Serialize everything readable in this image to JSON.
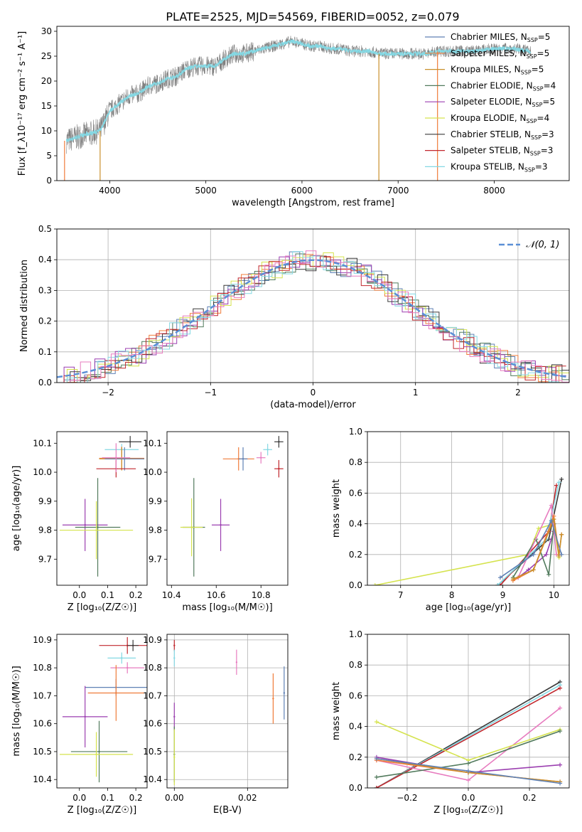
{
  "figure": {
    "title": "PLATE=2525, MJD=54569, FIBERID=0052, z=0.079"
  },
  "colors": {
    "Chabrier MILES": "#5f81b5",
    "Salpeter MILES": "#f07c3a",
    "Kroupa MILES": "#c9902c",
    "Chabrier ELODIE": "#517a5c",
    "Salpeter ELODIE": "#9b3fb0",
    "Kroupa ELODIE": "#d5e34e",
    "Chabrier STELIB": "#3a3a3a",
    "Salpeter STELIB": "#c1272d",
    "Kroupa STELIB": "#84d8e3",
    "Pink": "#e77bbf",
    "Gaussian": "#5b8fd6",
    "Data": "#808080"
  },
  "chart_data": [
    {
      "id": "spectrum",
      "type": "line",
      "title": "PLATE=2525, MJD=54569, FIBERID=0052, z=0.079",
      "xlabel": "wavelength [Angstrom, rest frame]",
      "ylabel": "Flux [f_λ10⁻¹⁷ erg cm⁻² s⁻¹ A⁻¹]",
      "xlim": [
        3450,
        8780
      ],
      "ylim": [
        0,
        31
      ],
      "xticks": [
        4000,
        5000,
        6000,
        7000,
        8000
      ],
      "yticks": [
        0,
        5,
        10,
        15,
        20,
        25,
        30
      ],
      "grid": false,
      "legend_position": "right",
      "legend": [
        {
          "label": "Chabrier MILES, N",
          "sub": "SSP",
          "suffix": "=5",
          "color_key": "Chabrier MILES"
        },
        {
          "label": "Salpeter MILES, N",
          "sub": "SSP",
          "suffix": "=5",
          "color_key": "Salpeter MILES"
        },
        {
          "label": "Kroupa MILES, N",
          "sub": "SSP",
          "suffix": "=5",
          "color_key": "Kroupa MILES"
        },
        {
          "label": "Chabrier ELODIE, N",
          "sub": "SSP",
          "suffix": "=4",
          "color_key": "Chabrier ELODIE"
        },
        {
          "label": "Salpeter ELODIE, N",
          "sub": "SSP",
          "suffix": "=5",
          "color_key": "Salpeter ELODIE"
        },
        {
          "label": "Kroupa ELODIE, N",
          "sub": "SSP",
          "suffix": "=4",
          "color_key": "Kroupa ELODIE"
        },
        {
          "label": "Chabrier STELIB, N",
          "sub": "SSP",
          "suffix": "=3",
          "color_key": "Chabrier STELIB"
        },
        {
          "label": "Salpeter STELIB, N",
          "sub": "SSP",
          "suffix": "=3",
          "color_key": "Salpeter STELIB"
        },
        {
          "label": "Kroupa STELIB, N",
          "sub": "SSP",
          "suffix": "=3",
          "color_key": "Kroupa STELIB"
        }
      ],
      "continuum": {
        "x": [
          3550,
          3700,
          3800,
          3900,
          4000,
          4100,
          4200,
          4300,
          4400,
          4500,
          4600,
          4700,
          4800,
          4900,
          5000,
          5100,
          5200,
          5300,
          5400,
          5500,
          5600,
          5700,
          5800,
          5900,
          6000,
          6100,
          6200,
          6300,
          6400,
          6500,
          6600,
          6700,
          6800,
          6900,
          7000,
          7100,
          7200,
          7300,
          7420,
          7600,
          7800,
          8000,
          8200,
          8380
        ],
        "y": [
          8,
          9,
          9.5,
          10,
          14,
          15.5,
          17,
          17.5,
          19,
          19.5,
          20.5,
          21,
          22.5,
          23,
          23,
          23,
          24.5,
          25.5,
          25.5,
          26,
          26.5,
          27,
          27.5,
          28,
          27.5,
          27,
          27,
          26.5,
          26.5,
          26,
          26,
          26,
          25.5,
          25.5,
          25.5,
          25.5,
          25.5,
          25.5,
          26,
          26,
          26,
          26.5,
          26.5,
          26
        ]
      },
      "drops": [
        {
          "x": 3530,
          "to": 0,
          "color_key": "Salpeter MILES"
        },
        {
          "x": 3900,
          "to": 0,
          "color_key": "Kroupa MILES"
        },
        {
          "x": 6800,
          "to": 0,
          "color_key": "Kroupa MILES"
        },
        {
          "x": 7410,
          "to": 0,
          "color_key": "Salpeter MILES"
        }
      ]
    },
    {
      "id": "residuals",
      "type": "histogram",
      "xlabel": "(data-model)/error",
      "ylabel": "Normed distribution",
      "xlim": [
        -2.5,
        2.5
      ],
      "ylim": [
        0,
        0.5
      ],
      "xticks": [
        -2,
        -1,
        0,
        1,
        2
      ],
      "xtick_labels": [
        "−2",
        "−1",
        "0",
        "1",
        "2"
      ],
      "yticks": [
        0,
        0.1,
        0.2,
        0.3,
        0.4,
        0.5
      ],
      "grid": true,
      "legend": [
        {
          "label": "𝒩(0, 1)",
          "color_key": "Gaussian",
          "style": "dashed"
        }
      ],
      "legend_position": "top-right",
      "bin_width": 0.1,
      "gaussian": {
        "mean": 0,
        "sigma": 1
      }
    },
    {
      "id": "age-vs-Z",
      "type": "scatter",
      "xlabel": "Z [log₁₀(Z/Z☉)]",
      "ylabel": "age  [log₁₀(age/yr)]",
      "xlim": [
        -0.08,
        0.24
      ],
      "ylim": [
        9.61,
        10.14
      ],
      "xticks": [
        0.0,
        0.1,
        0.2
      ],
      "yticks": [
        9.7,
        9.8,
        9.9,
        10.0,
        10.1
      ],
      "grid": false,
      "points": [
        {
          "key": "Chabrier STELIB",
          "x": 0.18,
          "y": 10.105,
          "xerr": 0.04,
          "yerr": 0.02
        },
        {
          "key": "Kroupa STELIB",
          "x": 0.15,
          "y": 10.078,
          "xerr": 0.06,
          "yerr": 0.02
        },
        {
          "key": "Salpeter MILES",
          "x": 0.15,
          "y": 10.048,
          "xerr": 0.08,
          "yerr": 0.04
        },
        {
          "key": "Kroupa MILES",
          "x": 0.15,
          "y": 10.046,
          "xerr": 0.08,
          "yerr": 0.04
        },
        {
          "key": "Chabrier MILES",
          "x": 0.16,
          "y": 10.046,
          "xerr": 0.07,
          "yerr": 0.04
        },
        {
          "key": "Salpeter STELIB",
          "x": 0.13,
          "y": 10.012,
          "xerr": 0.07,
          "yerr": 0.03
        },
        {
          "key": "Pink",
          "x": 0.13,
          "y": 10.05,
          "xerr": 0.05,
          "yerr": 0.05
        },
        {
          "key": "Salpeter ELODIE",
          "x": 0.02,
          "y": 9.818,
          "xerr": 0.08,
          "yerr": 0.09
        },
        {
          "key": "Chabrier ELODIE",
          "x": 0.065,
          "y": 9.81,
          "xerr": 0.08,
          "yerr": 0.17
        },
        {
          "key": "Kroupa ELODIE",
          "x": 0.06,
          "y": 9.8,
          "xerr": 0.13,
          "yerr": 0.1
        }
      ]
    },
    {
      "id": "age-vs-mass",
      "type": "scatter",
      "xlabel": "mass [log₁₀(M/M☉)]",
      "ylabel": "",
      "xlim": [
        10.38,
        10.92
      ],
      "ylim": [
        9.61,
        10.14
      ],
      "xticks": [
        10.4,
        10.6,
        10.8
      ],
      "yticks": [
        9.7,
        9.8,
        9.9,
        10.0,
        10.1
      ],
      "grid": false,
      "points": [
        {
          "key": "Chabrier STELIB",
          "x": 10.88,
          "y": 10.105,
          "xerr": 0.02,
          "yerr": 0.02
        },
        {
          "key": "Kroupa STELIB",
          "x": 10.83,
          "y": 10.078,
          "xerr": 0.02,
          "yerr": 0.02
        },
        {
          "key": "Salpeter STELIB",
          "x": 10.88,
          "y": 10.012,
          "xerr": 0.02,
          "yerr": 0.03
        },
        {
          "key": "Pink",
          "x": 10.8,
          "y": 10.05,
          "xerr": 0.02,
          "yerr": 0.02
        },
        {
          "key": "Salpeter MILES",
          "x": 10.7,
          "y": 10.046,
          "xerr": 0.07,
          "yerr": 0.04
        },
        {
          "key": "Chabrier MILES",
          "x": 10.72,
          "y": 10.046,
          "xerr": 0.02,
          "yerr": 0.04
        },
        {
          "key": "Salpeter ELODIE",
          "x": 10.62,
          "y": 9.818,
          "xerr": 0.04,
          "yerr": 0.09
        },
        {
          "key": "Chabrier ELODIE",
          "x": 10.5,
          "y": 9.81,
          "xerr": 0.05,
          "yerr": 0.17
        },
        {
          "key": "Kroupa ELODIE",
          "x": 10.49,
          "y": 9.81,
          "xerr": 0.05,
          "yerr": 0.1
        }
      ]
    },
    {
      "id": "mass-weight-vs-age",
      "type": "line",
      "xlabel": "age  [log₁₀(age/yr)]",
      "ylabel": "mass weight",
      "xlim": [
        6.35,
        10.3
      ],
      "ylim": [
        0,
        1.0
      ],
      "xticks": [
        7,
        8,
        9,
        10
      ],
      "yticks": [
        0.0,
        0.2,
        0.4,
        0.6,
        0.8,
        1.0
      ],
      "grid": true,
      "series": [
        {
          "key": "Kroupa ELODIE",
          "x": [
            6.5,
            9.5,
            9.7,
            10.0,
            10.1
          ],
          "y": [
            0.0,
            0.2,
            0.37,
            0.4,
            0.18
          ]
        },
        {
          "key": "Chabrier STELIB",
          "x": [
            8.9,
            9.9,
            10.15
          ],
          "y": [
            0.0,
            0.3,
            0.69
          ]
        },
        {
          "key": "Salpeter STELIB",
          "x": [
            8.95,
            9.9,
            10.05
          ],
          "y": [
            0.0,
            0.35,
            0.65
          ]
        },
        {
          "key": "Kroupa STELIB",
          "x": [
            8.9,
            9.85,
            10.1
          ],
          "y": [
            0.0,
            0.3,
            0.67
          ]
        },
        {
          "key": "Salpeter ELODIE",
          "x": [
            9.3,
            9.5,
            9.85,
            10.0
          ],
          "y": [
            0.05,
            0.1,
            0.2,
            0.35
          ]
        },
        {
          "key": "Chabrier ELODIE",
          "x": [
            9.2,
            9.65,
            9.9,
            10.0
          ],
          "y": [
            0.05,
            0.3,
            0.07,
            0.4
          ]
        },
        {
          "key": "Pink",
          "x": [
            9.3,
            9.95,
            10.05
          ],
          "y": [
            0.05,
            0.52,
            0.2
          ]
        },
        {
          "key": "Salpeter MILES",
          "x": [
            9.2,
            9.6,
            10.0,
            10.1,
            10.15
          ],
          "y": [
            0.03,
            0.1,
            0.45,
            0.2,
            0.33
          ]
        },
        {
          "key": "Kroupa MILES",
          "x": [
            9.2,
            9.6,
            10.0,
            10.1,
            10.15
          ],
          "y": [
            0.04,
            0.1,
            0.43,
            0.19,
            0.33
          ]
        },
        {
          "key": "Chabrier MILES",
          "x": [
            8.95,
            9.6,
            9.95,
            10.15
          ],
          "y": [
            0.05,
            0.2,
            0.42,
            0.2
          ]
        }
      ]
    },
    {
      "id": "mass-vs-Z",
      "type": "scatter",
      "xlabel": "Z [log₁₀(Z/Z☉)]",
      "ylabel": "mass [log₁₀(M/M☉)]",
      "xlim": [
        -0.08,
        0.24
      ],
      "ylim": [
        10.37,
        10.92
      ],
      "xticks": [
        0.0,
        0.1,
        0.2
      ],
      "yticks": [
        10.4,
        10.5,
        10.6,
        10.7,
        10.8,
        10.9
      ],
      "grid": false,
      "points": [
        {
          "key": "Salpeter STELIB",
          "x": 0.17,
          "y": 10.88,
          "xerr": 0.1,
          "yerr": 0.03
        },
        {
          "key": "Chabrier STELIB",
          "x": 0.19,
          "y": 10.88,
          "xerr": 0.02,
          "yerr": 0.02
        },
        {
          "key": "Kroupa STELIB",
          "x": 0.15,
          "y": 10.835,
          "xerr": 0.05,
          "yerr": 0.02
        },
        {
          "key": "Pink",
          "x": 0.17,
          "y": 10.8,
          "xerr": 0.06,
          "yerr": 0.02
        },
        {
          "key": "Chabrier MILES",
          "x": 0.13,
          "y": 10.73,
          "xerr": 0.11,
          "yerr": 0.03
        },
        {
          "key": "Salpeter MILES",
          "x": 0.13,
          "y": 10.71,
          "xerr": 0.1,
          "yerr": 0.1
        },
        {
          "key": "Salpeter ELODIE",
          "x": 0.02,
          "y": 10.625,
          "xerr": 0.08,
          "yerr": 0.11
        },
        {
          "key": "Chabrier ELODIE",
          "x": 0.07,
          "y": 10.5,
          "xerr": 0.1,
          "yerr": 0.11
        },
        {
          "key": "Kroupa ELODIE",
          "x": 0.06,
          "y": 10.49,
          "xerr": 0.13,
          "yerr": 0.08
        }
      ]
    },
    {
      "id": "mass-vs-EBV",
      "type": "scatter",
      "xlabel": "E(B-V)",
      "ylabel": "",
      "xlim": [
        -0.002,
        0.031
      ],
      "ylim": [
        10.37,
        10.92
      ],
      "xticks": [
        0.0,
        0.02
      ],
      "yticks": [
        10.4,
        10.5,
        10.6,
        10.7,
        10.8,
        10.9
      ],
      "grid": true,
      "points": [
        {
          "key": "Salpeter STELIB",
          "x": 0.0,
          "y": 10.88,
          "xerr": 0,
          "yerr": 0.02
        },
        {
          "key": "Kroupa STELIB",
          "x": 0.0,
          "y": 10.835,
          "xerr": 0,
          "yerr": 0.03
        },
        {
          "key": "Pink",
          "x": 0.017,
          "y": 10.82,
          "xerr": 0,
          "yerr": 0.045
        },
        {
          "key": "Chabrier MILES",
          "x": 0.03,
          "y": 10.71,
          "xerr": 0,
          "yerr": 0.095
        },
        {
          "key": "Salpeter MILES",
          "x": 0.027,
          "y": 10.69,
          "xerr": 0,
          "yerr": 0.09
        },
        {
          "key": "Salpeter ELODIE",
          "x": 0.0,
          "y": 10.625,
          "xerr": 0,
          "yerr": 0.05
        },
        {
          "key": "Chabrier ELODIE",
          "x": 0.0,
          "y": 10.49,
          "xerr": 0,
          "yerr": 0.1
        },
        {
          "key": "Kroupa ELODIE",
          "x": 0.0,
          "y": 10.48,
          "xerr": 0,
          "yerr": 0.1
        }
      ]
    },
    {
      "id": "mass-weight-vs-Z",
      "type": "line",
      "xlabel": "Z [log₁₀(Z/Z☉)]",
      "ylabel": "mass weight",
      "xlim": [
        -0.33,
        0.33
      ],
      "ylim": [
        0,
        1.0
      ],
      "xticks": [
        -0.2,
        0.0,
        0.2
      ],
      "xtick_labels": [
        "−0.2",
        "0.0",
        "0.2"
      ],
      "yticks": [
        0.0,
        0.2,
        0.4,
        0.6,
        0.8,
        1.0
      ],
      "grid": true,
      "series": [
        {
          "key": "Chabrier STELIB",
          "x": [
            -0.3,
            0.3
          ],
          "y": [
            0.0,
            0.69
          ]
        },
        {
          "key": "Kroupa STELIB",
          "x": [
            -0.3,
            0.3
          ],
          "y": [
            0.0,
            0.67
          ]
        },
        {
          "key": "Salpeter STELIB",
          "x": [
            -0.3,
            0.3
          ],
          "y": [
            0.0,
            0.65
          ]
        },
        {
          "key": "Pink",
          "x": [
            -0.3,
            0.0,
            0.3
          ],
          "y": [
            0.18,
            0.05,
            0.52
          ]
        },
        {
          "key": "Kroupa ELODIE",
          "x": [
            -0.3,
            0.0,
            0.3
          ],
          "y": [
            0.43,
            0.18,
            0.38
          ]
        },
        {
          "key": "Chabrier ELODIE",
          "x": [
            -0.3,
            0.0,
            0.3
          ],
          "y": [
            0.07,
            0.16,
            0.37
          ]
        },
        {
          "key": "Salpeter ELODIE",
          "x": [
            -0.3,
            0.0,
            0.3
          ],
          "y": [
            0.2,
            0.1,
            0.15
          ]
        },
        {
          "key": "Salpeter MILES",
          "x": [
            -0.3,
            0.0,
            0.3
          ],
          "y": [
            0.18,
            0.1,
            0.04
          ]
        },
        {
          "key": "Kroupa MILES",
          "x": [
            -0.3,
            0.0,
            0.3
          ],
          "y": [
            0.19,
            0.1,
            0.04
          ]
        },
        {
          "key": "Chabrier MILES",
          "x": [
            -0.3,
            0.0,
            0.3
          ],
          "y": [
            0.19,
            0.11,
            0.03
          ]
        }
      ]
    }
  ]
}
